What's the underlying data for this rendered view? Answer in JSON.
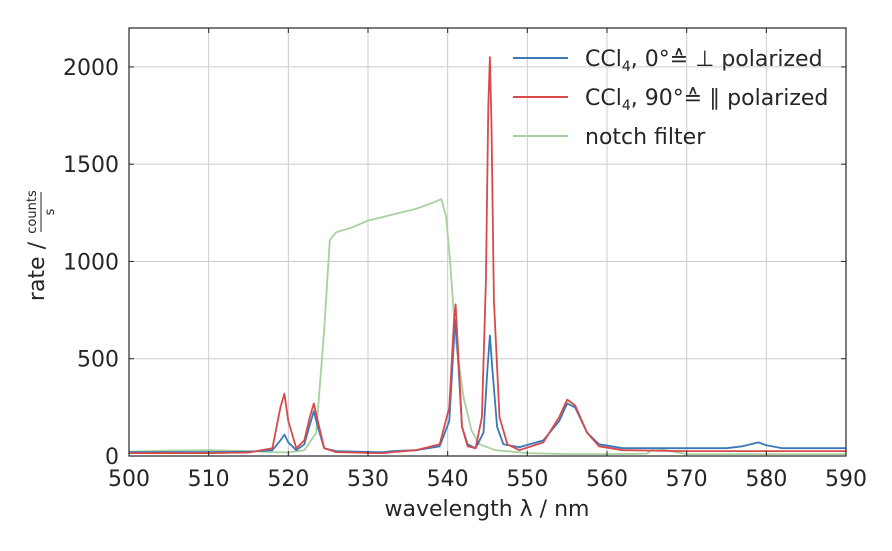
{
  "chart_data": {
    "type": "line",
    "xlabel": "wavelength λ / nm",
    "ylabel_prefix": "rate / ",
    "ylabel_frac_num": "counts",
    "ylabel_frac_den": "s",
    "xlim": [
      500,
      590
    ],
    "ylim": [
      0,
      2200
    ],
    "xticks": [
      500,
      510,
      520,
      530,
      540,
      550,
      560,
      570,
      580,
      590
    ],
    "yticks": [
      0,
      500,
      1000,
      1500,
      2000
    ],
    "grid": true,
    "legend_position": "top-right",
    "series": [
      {
        "name": "notch filter",
        "color": "#a8d0a0",
        "style": "solid",
        "x": [
          500,
          505,
          510,
          515,
          518,
          520,
          522,
          523.5,
          524.5,
          525.2,
          526,
          528,
          530,
          532,
          534,
          536,
          538,
          539.2,
          539.8,
          540.3,
          541,
          542,
          543,
          544,
          546,
          550,
          555,
          560,
          565,
          566,
          570,
          575,
          580,
          585,
          590
        ],
        "y": [
          22,
          28,
          30,
          25,
          20,
          18,
          30,
          120,
          650,
          1110,
          1150,
          1175,
          1210,
          1230,
          1250,
          1270,
          1300,
          1320,
          1230,
          1000,
          600,
          300,
          130,
          60,
          30,
          15,
          10,
          10,
          12,
          40,
          10,
          10,
          10,
          10,
          10
        ]
      },
      {
        "name": "CCl₄, 0°≙ ⊥ polarized",
        "color": "#3a78b8",
        "style": "solid",
        "x": [
          500,
          510,
          515,
          518,
          519,
          519.5,
          520,
          521,
          522,
          522.7,
          523.2,
          523.7,
          524.5,
          526,
          531,
          532,
          533,
          536,
          539,
          540.2,
          540.8,
          541.0,
          541.3,
          541.8,
          542.5,
          543.5,
          544.5,
          545.0,
          545.3,
          545.6,
          546.2,
          547,
          549,
          552,
          554,
          555,
          556,
          557.5,
          559,
          562,
          570,
          575,
          577,
          578.5,
          579,
          580,
          582,
          590
        ],
        "y": [
          20,
          20,
          22,
          30,
          80,
          110,
          70,
          30,
          60,
          160,
          230,
          150,
          40,
          25,
          20,
          20,
          25,
          30,
          50,
          180,
          600,
          700,
          500,
          150,
          60,
          40,
          120,
          450,
          620,
          450,
          150,
          60,
          45,
          80,
          180,
          270,
          250,
          120,
          60,
          40,
          40,
          40,
          50,
          65,
          70,
          55,
          40,
          40
        ]
      },
      {
        "name": "CCl₄, 90°≙ ∥ polarized",
        "color": "#d84a4a",
        "style": "solid",
        "x": [
          500,
          510,
          515,
          518,
          519,
          519.5,
          520,
          521,
          522,
          522.7,
          523.2,
          523.7,
          524.5,
          526,
          531,
          532,
          533,
          536,
          539,
          540.2,
          540.8,
          541.0,
          541.3,
          541.8,
          542.5,
          543.5,
          544.3,
          544.8,
          545.1,
          545.3,
          545.5,
          545.8,
          546.5,
          547.5,
          549,
          552,
          554,
          555,
          556,
          557.5,
          559,
          562,
          570,
          575,
          580,
          590
        ],
        "y": [
          15,
          15,
          18,
          40,
          250,
          320,
          180,
          40,
          80,
          200,
          270,
          180,
          40,
          20,
          15,
          15,
          20,
          30,
          60,
          250,
          700,
          780,
          550,
          150,
          50,
          40,
          200,
          900,
          1800,
          2050,
          1700,
          800,
          200,
          60,
          30,
          70,
          200,
          290,
          260,
          120,
          50,
          30,
          25,
          25,
          25,
          25
        ]
      }
    ],
    "legend": [
      {
        "label_base": "CCl",
        "label_sub": "4",
        "label_rest": ", 0°≙ ⊥ polarized",
        "color": "#3a78b8"
      },
      {
        "label_base": "CCl",
        "label_sub": "4",
        "label_rest": ", 90°≙ ∥ polarized",
        "color": "#d84a4a"
      },
      {
        "label_base": "notch filter",
        "label_sub": "",
        "label_rest": "",
        "color": "#a8d0a0"
      }
    ]
  }
}
